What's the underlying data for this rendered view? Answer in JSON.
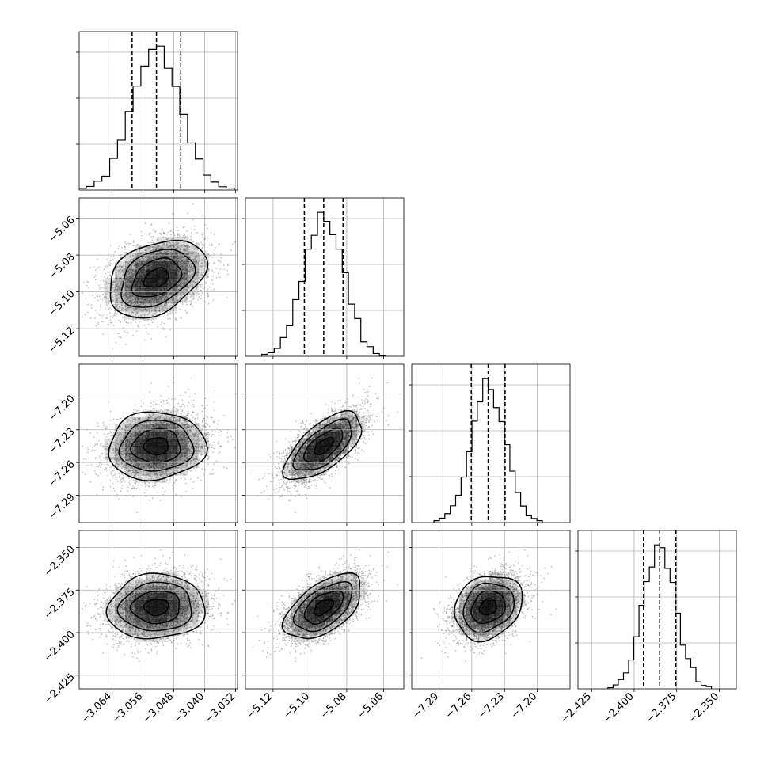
{
  "chart_data": {
    "type": "corner",
    "title": "",
    "grid": true,
    "parameters": [
      {
        "name": "",
        "mean": -3.0525,
        "sigma": 0.0063,
        "quantiles": [
          -3.0588,
          -3.0525,
          -3.0462
        ],
        "range": [
          -3.0725,
          -3.0315
        ],
        "ticks": [
          -3.064,
          -3.056,
          -3.048,
          -3.04,
          -3.032
        ],
        "tick_labels": [
          "−3.064",
          "−3.056",
          "−3.048",
          "−3.040",
          "−3.032"
        ]
      },
      {
        "name": "",
        "mean": -5.0925,
        "sigma": 0.0105,
        "quantiles": [
          -5.103,
          -5.0925,
          -5.082
        ],
        "range": [
          -5.135,
          -5.049
        ],
        "ticks": [
          -5.12,
          -5.1,
          -5.08,
          -5.06
        ],
        "tick_labels": [
          "−5.12",
          "−5.10",
          "−5.08",
          "−5.06"
        ]
      },
      {
        "name": "",
        "mean": -7.245,
        "sigma": 0.0155,
        "quantiles": [
          -7.2605,
          -7.245,
          -7.2295
        ],
        "range": [
          -7.315,
          -7.17
        ],
        "ticks": [
          -7.29,
          -7.26,
          -7.23,
          -7.2
        ],
        "tick_labels": [
          "−7.29",
          "−7.26",
          "−7.23",
          "−7.20"
        ]
      },
      {
        "name": "",
        "mean": -2.385,
        "sigma": 0.0095,
        "quantiles": [
          -2.3945,
          -2.385,
          -2.3755
        ],
        "range": [
          -2.433,
          -2.34
        ],
        "ticks": [
          -2.425,
          -2.4,
          -2.375,
          -2.35
        ],
        "tick_labels": [
          "−2.425",
          "−2.400",
          "−2.375",
          "−2.350"
        ]
      }
    ],
    "correlations": [
      [
        1,
        0.35,
        0.05,
        0.05
      ],
      [
        0.35,
        1,
        0.65,
        0.55
      ],
      [
        0.05,
        0.65,
        1,
        0.2
      ],
      [
        0.05,
        0.55,
        0.2,
        1
      ]
    ],
    "histogram_bins": 20,
    "contour_levels_sigma": [
      0.5,
      1,
      1.5,
      2
    ],
    "colors": {
      "line": "#000000",
      "scatter": "#555555",
      "density": "#000000",
      "grid": "#b0b0b0"
    }
  }
}
